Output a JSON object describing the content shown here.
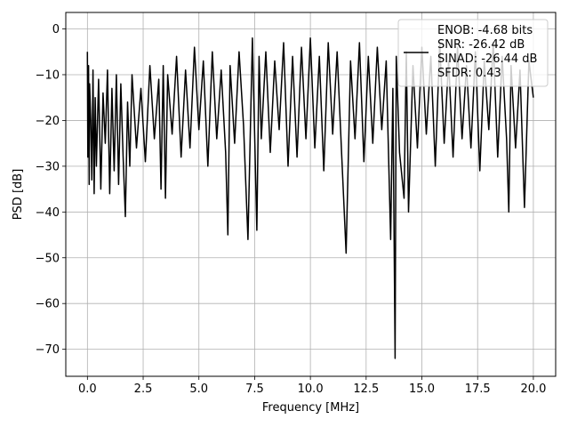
{
  "chart_data": {
    "type": "line",
    "title": "",
    "xlabel": "Frequency [MHz]",
    "ylabel": "PSD [dB]",
    "xlim": [
      -0.97,
      21.0
    ],
    "ylim": [
      -75.9,
      3.6
    ],
    "xticks": [
      0.0,
      2.5,
      5.0,
      7.5,
      10.0,
      12.5,
      15.0,
      17.5,
      20.0
    ],
    "xtick_labels": [
      "0.0",
      "2.5",
      "5.0",
      "7.5",
      "10.0",
      "12.5",
      "15.0",
      "17.5",
      "20.0"
    ],
    "yticks": [
      0,
      -10,
      -20,
      -30,
      -40,
      -50,
      -60,
      -70
    ],
    "ytick_labels": [
      "0",
      "−10",
      "−20",
      "−30",
      "−40",
      "−50",
      "−60",
      "−70"
    ],
    "grid": true,
    "line_color": "#000000",
    "legend": {
      "placement": "top-right",
      "entries": [
        "ENOB: -4.68 bits",
        "SNR: -26.42 dB",
        "SINAD: -26.44 dB",
        "SFDR: 0.43"
      ]
    },
    "series": [
      {
        "x": [
          0.0,
          0.02,
          0.05,
          0.08,
          0.1,
          0.15,
          0.2,
          0.25,
          0.3,
          0.35,
          0.4,
          0.5,
          0.6,
          0.7,
          0.8,
          0.9,
          1.0,
          1.1,
          1.2,
          1.3,
          1.4,
          1.5,
          1.6,
          1.7,
          1.8,
          1.9,
          2.0,
          2.2,
          2.4,
          2.6,
          2.8,
          3.0,
          3.2,
          3.3,
          3.4,
          3.5,
          3.6,
          3.8,
          4.0,
          4.2,
          4.4,
          4.6,
          4.8,
          5.0,
          5.2,
          5.4,
          5.6,
          5.8,
          6.0,
          6.2,
          6.3,
          6.4,
          6.6,
          6.8,
          7.0,
          7.2,
          7.4,
          7.6,
          7.7,
          7.8,
          8.0,
          8.2,
          8.4,
          8.6,
          8.8,
          9.0,
          9.2,
          9.4,
          9.6,
          9.8,
          10.0,
          10.2,
          10.4,
          10.6,
          10.8,
          11.0,
          11.2,
          11.4,
          11.6,
          11.8,
          12.0,
          12.2,
          12.4,
          12.6,
          12.8,
          13.0,
          13.2,
          13.4,
          13.6,
          13.7,
          13.8,
          13.85,
          14.0,
          14.2,
          14.3,
          14.4,
          14.6,
          14.8,
          15.0,
          15.2,
          15.4,
          15.6,
          15.8,
          16.0,
          16.2,
          16.4,
          16.6,
          16.8,
          17.0,
          17.2,
          17.4,
          17.6,
          17.8,
          18.0,
          18.2,
          18.4,
          18.6,
          18.8,
          18.9,
          19.0,
          19.2,
          19.4,
          19.6,
          19.8,
          20.0
        ],
        "y": [
          -5,
          -28,
          -8,
          -34,
          -12,
          -20,
          -33,
          -9,
          -36,
          -15,
          -30,
          -11,
          -35,
          -14,
          -25,
          -9,
          -36,
          -13,
          -31,
          -10,
          -34,
          -12,
          -28,
          -41,
          -16,
          -30,
          -10,
          -26,
          -13,
          -29,
          -8,
          -24,
          -11,
          -35,
          -8,
          -37,
          -10,
          -23,
          -6,
          -28,
          -9,
          -26,
          -4,
          -22,
          -7,
          -30,
          -5,
          -24,
          -9,
          -27,
          -45,
          -8,
          -25,
          -5,
          -21,
          -46,
          -2,
          -44,
          -6,
          -24,
          -5,
          -27,
          -7,
          -22,
          -3,
          -30,
          -6,
          -28,
          -4,
          -24,
          -2,
          -26,
          -6,
          -31,
          -3,
          -23,
          -5,
          -27,
          -49,
          -7,
          -24,
          -3,
          -29,
          -6,
          -25,
          -4,
          -22,
          -7,
          -46,
          -13,
          -72,
          -6,
          -27,
          -37,
          -5,
          -40,
          -8,
          -26,
          -4,
          -23,
          -6,
          -30,
          -3,
          -25,
          -7,
          -28,
          -4,
          -24,
          -8,
          -26,
          -5,
          -31,
          -7,
          -22,
          -3,
          -28,
          -6,
          -24,
          -40,
          -8,
          -26,
          -9,
          -39,
          -7,
          -15
        ]
      }
    ]
  }
}
